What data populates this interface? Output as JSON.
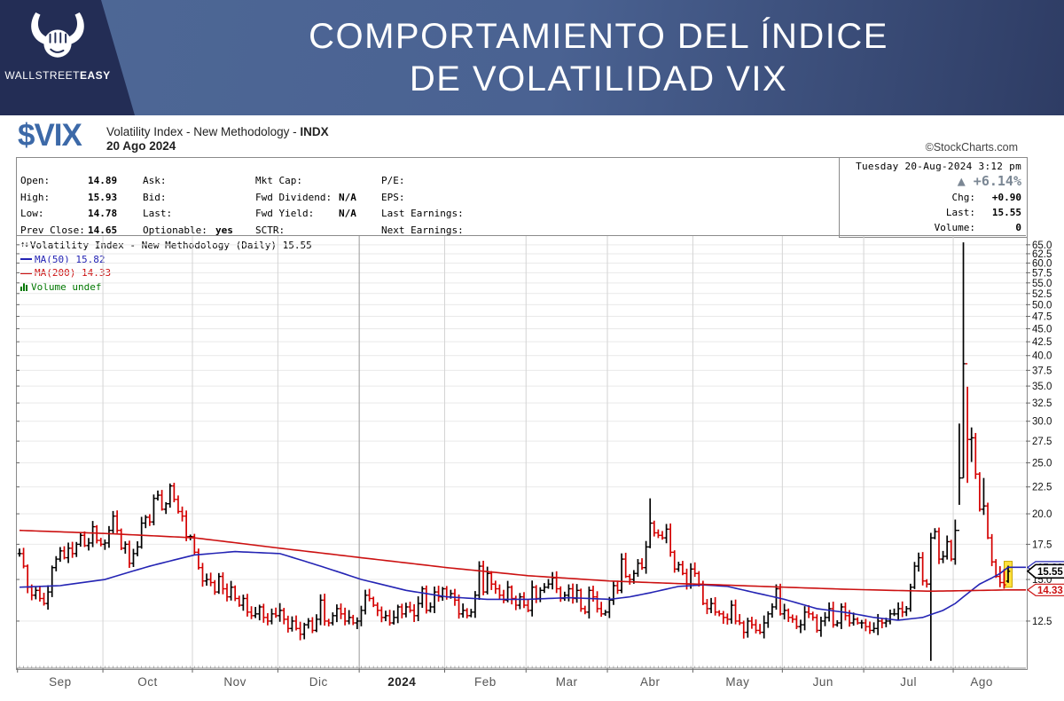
{
  "banner": {
    "title_line1": "COMPORTAMIENTO DEL ÍNDICE",
    "title_line2": "DE VOLATILIDAD VIX",
    "brand_regular": "WALLSTREET",
    "brand_bold": "EASY"
  },
  "header": {
    "symbol": "$VIX",
    "name": "Volatility Index - New Methodology - ",
    "exchange": "INDX",
    "date": "20 Ago 2024",
    "credit": "©StockCharts.com"
  },
  "quote_table": {
    "col1": [
      {
        "label": "Open:",
        "value": "14.89"
      },
      {
        "label": "High:",
        "value": "15.93"
      },
      {
        "label": "Low:",
        "value": "14.78"
      },
      {
        "label": "Prev Close:",
        "value": "14.65"
      }
    ],
    "col2": [
      {
        "label": "Ask:",
        "value": ""
      },
      {
        "label": "Bid:",
        "value": ""
      },
      {
        "label": "Last:",
        "value": ""
      },
      {
        "label": "Optionable:",
        "value": "yes"
      }
    ],
    "col3": [
      {
        "label": "Mkt Cap:",
        "value": ""
      },
      {
        "label": "Fwd Dividend:",
        "value": "N/A"
      },
      {
        "label": "Fwd Yield:",
        "value": "N/A"
      },
      {
        "label": "SCTR:",
        "value": ""
      }
    ],
    "col4": [
      {
        "label": "P/E:",
        "value": ""
      },
      {
        "label": "EPS:",
        "value": ""
      },
      {
        "label": "Last Earnings:",
        "value": ""
      },
      {
        "label": "Next Earnings:",
        "value": ""
      }
    ]
  },
  "info_panel": {
    "datetime": "Tuesday 20-Aug-2024 3:12 pm",
    "pct_change": "▲ +6.14%",
    "rows": [
      {
        "label": "Chg:",
        "value": "+0.90"
      },
      {
        "label": "Last:",
        "value": "15.55"
      },
      {
        "label": "Volume:",
        "value": "0"
      }
    ]
  },
  "legend": {
    "main": "Volatility Index - New Methodology (Daily) 15.55",
    "ma50": "MA(50) 15.82",
    "ma200": "MA(200) 14.33",
    "volume": "Volume undef"
  },
  "colors": {
    "up": "#000000",
    "down": "#d40000",
    "ma50": "#2424b4",
    "ma200": "#cc1111",
    "grid": "#e9e9e9",
    "vgrid": "#d4d4d4",
    "vgrid_year": "#9a9a9a",
    "border": "#8a8a8a",
    "highlight": "#ffe13d",
    "volume_green": "#007700",
    "pct_gray": "#7b8794",
    "symbol_blue": "#3c69a8",
    "banner_navy": "#232d55"
  },
  "chart_data": {
    "type": "ohlc",
    "title": "Volatility Index - New Methodology (Daily) 15.55",
    "scale": "log",
    "y_ticks": [
      12.5,
      15.0,
      17.5,
      20.0,
      22.5,
      25.0,
      27.5,
      30.0,
      32.5,
      35.0,
      37.5,
      40.0,
      42.5,
      45.0,
      47.5,
      50.0,
      52.5,
      55.0,
      57.5,
      60.0,
      62.5,
      65.0
    ],
    "y_domain": [
      10.17,
      67.8
    ],
    "months": [
      {
        "label": "Sep",
        "days": 21
      },
      {
        "label": "Oct",
        "days": 22
      },
      {
        "label": "Nov",
        "days": 21
      },
      {
        "label": "Dic",
        "days": 20
      },
      {
        "label": "2024",
        "days": 21,
        "bold": true
      },
      {
        "label": "Feb",
        "days": 20
      },
      {
        "label": "Mar",
        "days": 20
      },
      {
        "label": "Abr",
        "days": 21
      },
      {
        "label": "May",
        "days": 22
      },
      {
        "label": "Jun",
        "days": 20
      },
      {
        "label": "Jul",
        "days": 22
      },
      {
        "label": "Ago",
        "days": 14
      }
    ],
    "closes": [
      16.8,
      15.9,
      14.5,
      14.0,
      14.3,
      13.8,
      13.5,
      14.2,
      15.8,
      16.4,
      17.0,
      16.5,
      17.2,
      16.8,
      17.5,
      18.2,
      17.4,
      17.6,
      18.9,
      17.8,
      17.5,
      17.6,
      18.6,
      19.8,
      18.6,
      17.2,
      17.5,
      16.1,
      16.8,
      17.3,
      19.2,
      19.7,
      19.3,
      21.4,
      21.7,
      20.4,
      20.9,
      22.6,
      21.3,
      20.2,
      19.8,
      18.1,
      18.1,
      16.9,
      15.8,
      14.9,
      15.0,
      14.8,
      14.2,
      15.2,
      14.4,
      13.9,
      14.5,
      13.8,
      13.4,
      13.8,
      13.0,
      12.8,
      12.9,
      13.3,
      12.7,
      12.5,
      12.9,
      12.8,
      13.1,
      12.6,
      12.1,
      12.5,
      12.1,
      11.8,
      12.3,
      12.5,
      12.0,
      12.6,
      13.7,
      12.5,
      12.4,
      12.8,
      13.2,
      12.9,
      12.5,
      12.7,
      12.4,
      12.5,
      13.1,
      14.0,
      13.8,
      13.4,
      13.1,
      12.7,
      12.8,
      12.4,
      12.7,
      13.3,
      12.9,
      13.3,
      13.1,
      12.8,
      13.5,
      14.4,
      13.1,
      13.3,
      14.2,
      13.9,
      14.4,
      13.9,
      14.1,
      13.7,
      12.9,
      13.1,
      12.8,
      13.0,
      14.0,
      15.9,
      14.2,
      15.4,
      14.7,
      14.4,
      14.0,
      13.7,
      14.5,
      13.8,
      13.4,
      13.9,
      13.4,
      13.1,
      14.5,
      13.8,
      14.3,
      14.5,
      14.7,
      15.1,
      14.4,
      13.8,
      14.0,
      14.4,
      13.8,
      14.3,
      13.2,
      13.0,
      14.3,
      13.9,
      13.2,
      12.9,
      13.0,
      13.7,
      14.6,
      14.3,
      16.4,
      15.2,
      15.0,
      15.4,
      16.1,
      15.8,
      17.3,
      19.2,
      18.4,
      18.2,
      18.0,
      18.7,
      16.9,
      15.7,
      16.0,
      15.4,
      14.7,
      15.7,
      15.4,
      14.7,
      13.5,
      13.2,
      13.5,
      13.0,
      12.9,
      12.7,
      12.6,
      13.4,
      12.5,
      12.4,
      11.9,
      12.5,
      12.3,
      12.0,
      11.9,
      12.4,
      12.9,
      13.3,
      14.4,
      12.9,
      13.1,
      12.7,
      12.6,
      12.2,
      12.3,
      13.0,
      12.9,
      12.7,
      12.0,
      12.5,
      12.7,
      13.2,
      12.3,
      12.4,
      13.3,
      12.8,
      12.4,
      12.6,
      12.4,
      12.4,
      12.2,
      12.0,
      12.1,
      12.5,
      12.4,
      12.5,
      12.9,
      12.9,
      13.2,
      13.0,
      13.2,
      14.5,
      15.9,
      16.5,
      14.9,
      14.7,
      18.0,
      18.5,
      16.4,
      16.6,
      17.7,
      16.4,
      18.6,
      23.4,
      38.6,
      27.7,
      27.9,
      23.8,
      20.4,
      20.7,
      18.0,
      16.2,
      15.2,
      14.8,
      14.65,
      15.55
    ],
    "hl_overrides": {
      "155": [
        21.4,
        17.2
      ],
      "224": [
        18.4,
        10.5
      ],
      "230": [
        19.5,
        16.0
      ],
      "231": [
        29.7,
        20.8
      ],
      "232": [
        65.7,
        23.4
      ],
      "233": [
        34.9,
        22.9
      ],
      "234": [
        29.2,
        25.1
      ],
      "235": [
        28.5,
        23.3
      ],
      "236": [
        24.0,
        20.2
      ],
      "237": [
        23.4,
        19.9
      ],
      "238": [
        21.0,
        17.9
      ],
      "239": [
        18.3,
        15.9
      ],
      "240": [
        16.4,
        15.1
      ],
      "241": [
        15.9,
        14.5
      ],
      "242": [
        15.7,
        14.4
      ],
      "243": [
        15.93,
        14.78
      ]
    },
    "open_overrides": {
      "243": 14.89
    },
    "last_bar": {
      "open": 14.89,
      "high": 15.93,
      "low": 14.78,
      "close": 15.55,
      "highlighted": true
    },
    "series": [
      {
        "name": "MA(50)",
        "value": 15.82,
        "color": "#2424b4",
        "anchors": [
          [
            0,
            14.5
          ],
          [
            10,
            14.6
          ],
          [
            21,
            15.0
          ],
          [
            32,
            15.9
          ],
          [
            43,
            16.7
          ],
          [
            53,
            16.95
          ],
          [
            64,
            16.8
          ],
          [
            74,
            15.9
          ],
          [
            84,
            15.0
          ],
          [
            95,
            14.3
          ],
          [
            105,
            13.9
          ],
          [
            115,
            13.75
          ],
          [
            125,
            13.75
          ],
          [
            135,
            13.85
          ],
          [
            145,
            13.75
          ],
          [
            150,
            13.9
          ],
          [
            155,
            14.15
          ],
          [
            162,
            14.55
          ],
          [
            168,
            14.65
          ],
          [
            174,
            14.55
          ],
          [
            180,
            14.2
          ],
          [
            188,
            13.75
          ],
          [
            196,
            13.2
          ],
          [
            204,
            12.95
          ],
          [
            210,
            12.7
          ],
          [
            216,
            12.55
          ],
          [
            222,
            12.7
          ],
          [
            227,
            13.1
          ],
          [
            230,
            13.5
          ],
          [
            233,
            14.1
          ],
          [
            236,
            14.7
          ],
          [
            239,
            15.1
          ],
          [
            241,
            15.4
          ],
          [
            243,
            15.82
          ]
        ]
      },
      {
        "name": "MA(200)",
        "value": 14.33,
        "color": "#cc1111",
        "anchors": [
          [
            0,
            18.6
          ],
          [
            21,
            18.35
          ],
          [
            43,
            18.0
          ],
          [
            64,
            17.2
          ],
          [
            84,
            16.5
          ],
          [
            105,
            15.8
          ],
          [
            125,
            15.25
          ],
          [
            145,
            14.9
          ],
          [
            160,
            14.75
          ],
          [
            172,
            14.65
          ],
          [
            188,
            14.5
          ],
          [
            202,
            14.38
          ],
          [
            214,
            14.3
          ],
          [
            224,
            14.25
          ],
          [
            232,
            14.28
          ],
          [
            243,
            14.33
          ]
        ]
      }
    ],
    "price_markers": [
      {
        "value": "15.82",
        "num": 15.82,
        "color": "#2424b4",
        "bold": false
      },
      {
        "value": "14.33",
        "num": 14.33,
        "color": "#cc1111",
        "bold": false
      },
      {
        "value": "15.55",
        "num": 15.55,
        "color": "#000000",
        "bold": true
      }
    ],
    "last_price": 15.55
  }
}
